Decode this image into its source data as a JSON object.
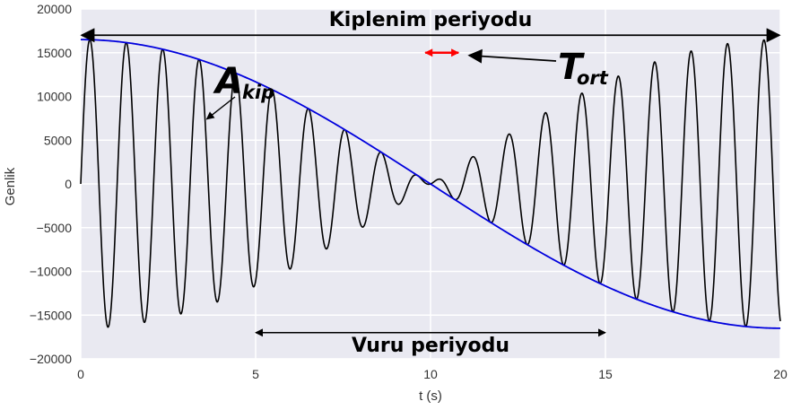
{
  "chart_data": {
    "type": "line",
    "xlabel": "t (s)",
    "ylabel": "Genlik",
    "xlim": [
      0,
      20
    ],
    "ylim": [
      -20000,
      20000
    ],
    "x_ticks": [
      0,
      5,
      10,
      15,
      20
    ],
    "x_tick_labels": [
      "0",
      "5",
      "10",
      "15",
      "20"
    ],
    "y_ticks": [
      -20000,
      -15000,
      -10000,
      -5000,
      0,
      5000,
      10000,
      15000,
      20000
    ],
    "y_tick_labels": [
      "−20000",
      "−15000",
      "−10000",
      "−5000",
      "0",
      "5000",
      "10000",
      "15000",
      "20000"
    ],
    "grid": true,
    "background": "#e9e9f1",
    "series": [
      {
        "role": "signal",
        "color": "#000000",
        "formula": "2 * A * sin(2*pi*f_avg*t) * cos(2*pi*f_mod*t)",
        "A": 8250,
        "f_avg": 0.96,
        "f_mod": 0.025,
        "t_range": [
          0,
          20
        ]
      },
      {
        "role": "envelope",
        "color": "#0000dd",
        "formula": "2 * A * cos(2*pi*f_mod*t)",
        "A": 8250,
        "f_mod": 0.025,
        "t_range": [
          0,
          20
        ]
      }
    ],
    "annotations": {
      "modulation_period": {
        "text": "Kiplenim periyodu",
        "x_from": 0,
        "x_to": 20,
        "y": 17000,
        "color": "#000000"
      },
      "beat_period": {
        "text": "Vuru periyodu",
        "x_from": 5,
        "x_to": 15,
        "y": -17000,
        "color": "#000000"
      },
      "amplitude": {
        "symbol": "A",
        "subscript": "kip",
        "arrow_to": [
          3.6,
          7400
        ],
        "color": "#000000"
      },
      "average_period": {
        "symbol": "T",
        "subscript": "ort",
        "red_arrow_from": 9.85,
        "red_arrow_to": 10.8,
        "y": 15000,
        "arrow_color": "#ff0000",
        "pointer_to": [
          11.0,
          15000
        ]
      }
    }
  }
}
